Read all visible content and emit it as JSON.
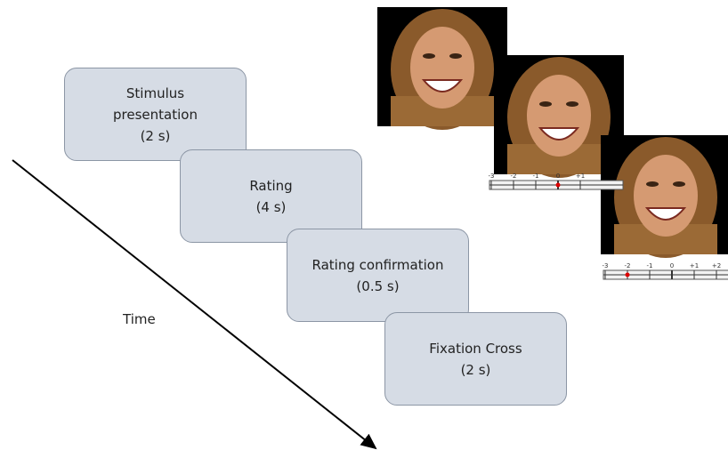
{
  "steps": [
    {
      "label": "Stimulus presentation",
      "duration": "(2 s)"
    },
    {
      "label": "Rating",
      "duration": "(4 s)"
    },
    {
      "label": "Rating confirmation",
      "duration": "(0.5 s)"
    },
    {
      "label": "Fixation Cross",
      "duration": "(2 s)"
    }
  ],
  "time_label": "Time",
  "scales": [
    {
      "labels": [
        "-3",
        "-2",
        "-1",
        "0",
        "+1"
      ]
    },
    {
      "labels": [
        "-3",
        "-2",
        "-1",
        "0",
        "+1",
        "+2"
      ]
    }
  ]
}
